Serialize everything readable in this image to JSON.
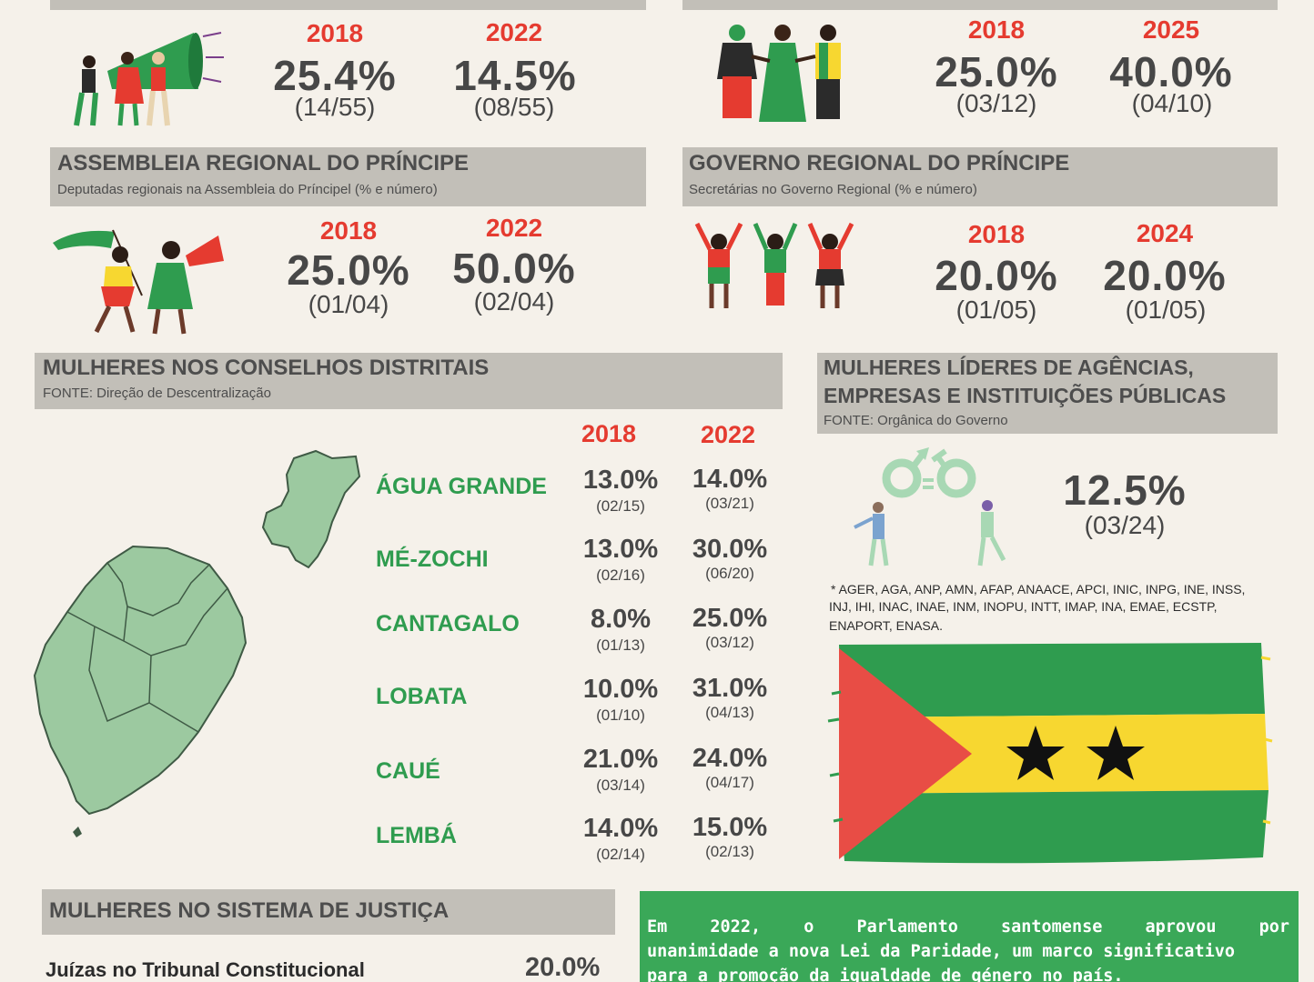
{
  "top_left": {
    "years": [
      "2018",
      "2022"
    ],
    "pcts": [
      "25.4%",
      "14.5%"
    ],
    "fracs": [
      "(14/55)",
      "(08/55)"
    ]
  },
  "top_right": {
    "years": [
      "2018",
      "2025"
    ],
    "pcts": [
      "25.0%",
      "40.0%"
    ],
    "fracs": [
      "(03/12)",
      "(04/10)"
    ]
  },
  "assembleia": {
    "title": "ASSEMBLEIA REGIONAL DO PRÍNCIPE",
    "subtitle": "Deputadas regionais na Assembleia do Príncipel (% e número)",
    "years": [
      "2018",
      "2022"
    ],
    "pcts": [
      "25.0%",
      "50.0%"
    ],
    "fracs": [
      "(01/04)",
      "(02/04)"
    ]
  },
  "governo": {
    "title": "GOVERNO REGIONAL DO PRÍNCIPE",
    "subtitle": "Secretárias no Governo Regional  (% e número)",
    "years": [
      "2018",
      "2024"
    ],
    "pcts": [
      "20.0%",
      "20.0%"
    ],
    "fracs": [
      "(01/05)",
      "(01/05)"
    ]
  },
  "conselhos": {
    "title": "MULHERES NOS CONSELHOS DISTRITAIS",
    "subtitle": "FONTE: Direção de Descentralização",
    "years": [
      "2018",
      "2022"
    ],
    "districts": [
      {
        "name": "ÁGUA GRANDE",
        "p2018": "13.0%",
        "f2018": "(02/15)",
        "p2022": "14.0%",
        "f2022": "(03/21)"
      },
      {
        "name": "MÉ-ZOCHI",
        "p2018": "13.0%",
        "f2018": "(02/16)",
        "p2022": "30.0%",
        "f2022": "(06/20)"
      },
      {
        "name": "CANTAGALO",
        "p2018": "8.0%",
        "f2018": "(01/13)",
        "p2022": "25.0%",
        "f2022": "(03/12)"
      },
      {
        "name": "LOBATA",
        "p2018": "10.0%",
        "f2018": "(01/10)",
        "p2022": "31.0%",
        "f2022": "(04/13)"
      },
      {
        "name": "CAUÉ",
        "p2018": "21.0%",
        "f2018": "(03/14)",
        "p2022": "24.0%",
        "f2022": "(04/17)"
      },
      {
        "name": "LEMBÁ",
        "p2018": "14.0%",
        "f2018": "(02/14)",
        "p2022": "15.0%",
        "f2022": "(02/13)"
      }
    ]
  },
  "lideres": {
    "title_line1": "MULHERES LÍDERES DE AGÊNCIAS,",
    "title_line2": "EMPRESAS E INSTITUIÇÕES PÚBLICAS",
    "subtitle": "FONTE: Orgânica do Governo",
    "pct": "12.5%",
    "frac": "(03/24)",
    "note_line1": "*  AGER, AGA, ANP, AMN, AFAP, ANAACE, APCI, INIC, INPG, INE, INSS,",
    "note_line2": "INJ, IHI, INAC, INAE, INM, INOPU, INTT, IMAP, INA, EMAE, ECSTP,",
    "note_line3": "ENAPORT, ENASA."
  },
  "justica": {
    "title": "MULHERES NO SISTEMA DE JUSTIÇA",
    "row_label": "Juízas no Tribunal Constitucional",
    "row_pct": "20.0%"
  },
  "paridade": {
    "line1": "Em 2022, o Parlamento santomense aprovou por",
    "line2": "unanimidade a nova Lei da Paridade, um marco significativo",
    "line3": "para a promoção da igualdade de género no país."
  },
  "colors": {
    "red": "#e53b30",
    "green": "#2f9c4f",
    "header_gray": "#c2bfb8",
    "map_green": "#9cc9a0",
    "flag_yellow": "#f7d730"
  }
}
